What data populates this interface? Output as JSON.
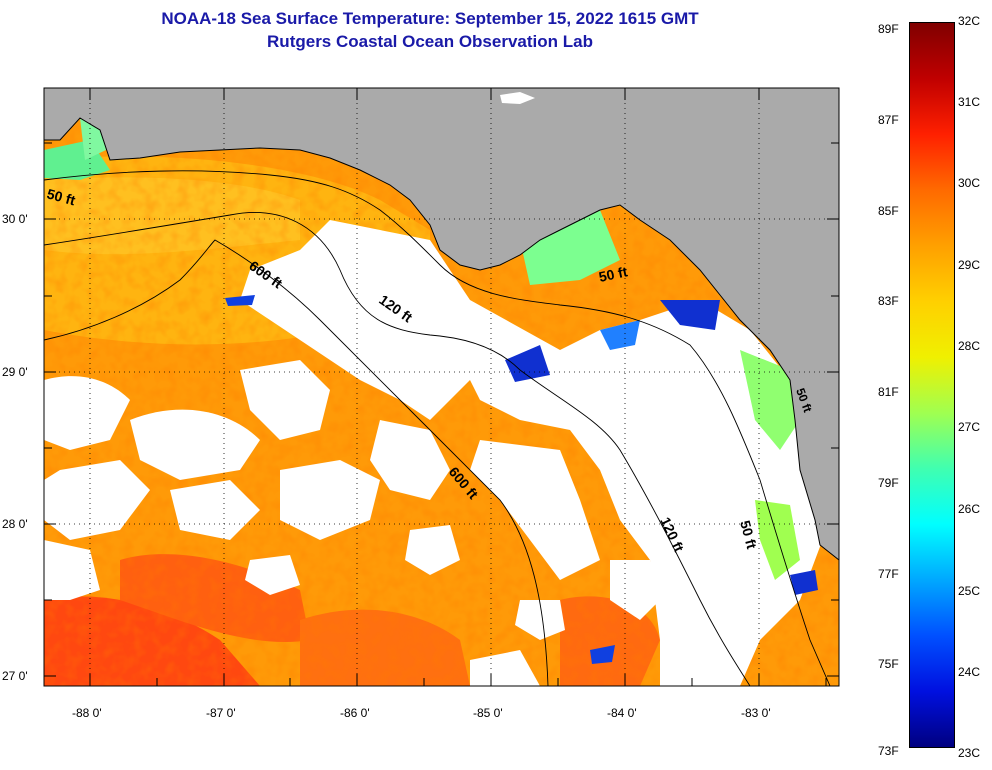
{
  "header": {
    "title": "NOAA-18 Sea Surface Temperature:  September 15, 2022 1615 GMT",
    "subtitle": "Rutgers Coastal Ocean Observation Lab"
  },
  "axes": {
    "lat_labels": [
      "30 0'",
      "29 0'",
      "28 0'",
      "27 0'"
    ],
    "lon_labels": [
      "-88 0'",
      "-87 0'",
      "-86 0'",
      "-85 0'",
      "-84 0'",
      "-83 0'"
    ]
  },
  "contours": {
    "c50w": "50 ft",
    "c600a": "600 ft",
    "c120a": "120 ft",
    "c50e": "50 ft",
    "c600b": "600 ft",
    "c120b": "120 ft",
    "c50s": "50 ft",
    "c50se": "50 ft"
  },
  "colorbar": {
    "fahrenheit": [
      "89F",
      "87F",
      "85F",
      "83F",
      "81F",
      "79F",
      "77F",
      "75F",
      "73F"
    ],
    "celsius": [
      "32C",
      "31C",
      "30C",
      "29C",
      "28C",
      "27C",
      "26C",
      "25C",
      "24C",
      "23C"
    ],
    "gradient_colors": [
      "#800000",
      "#c00000",
      "#ff2000",
      "#ff6a00",
      "#ffa000",
      "#ffd000",
      "#f0f000",
      "#a0ff50",
      "#40ffb0",
      "#00ffff",
      "#00a8ff",
      "#0050ff",
      "#0010e0",
      "#000080"
    ]
  },
  "colors": {
    "land": "#aaaaaa",
    "cloud": "#ffffff",
    "warm": "#ff9000",
    "hot": "#ff4810",
    "cool": "#70ff80",
    "cold": "#1030d0",
    "title": "#1a1aa8"
  }
}
